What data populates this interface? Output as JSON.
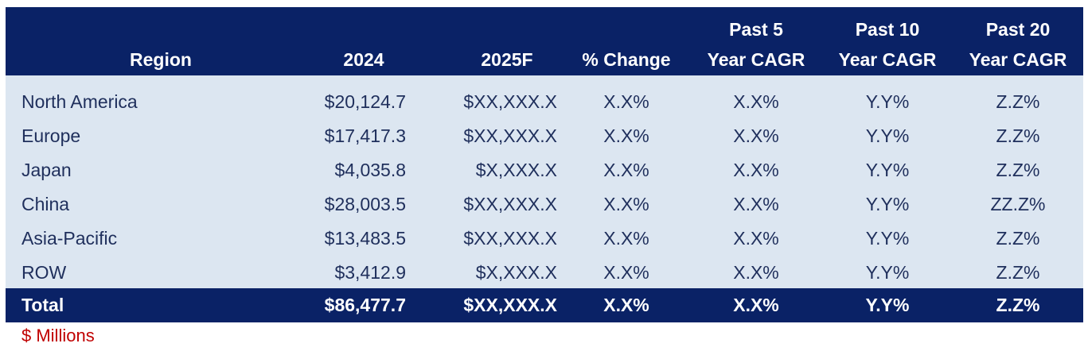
{
  "chart_data": {
    "type": "table",
    "columns": [
      "Region",
      "2024",
      "2025F",
      "% Change",
      "Past 5 Year CAGR",
      "Past 10 Year CAGR",
      "Past 20 Year CAGR"
    ],
    "header": {
      "region": [
        "Region"
      ],
      "y2024": [
        "2024"
      ],
      "y2025f": [
        "2025F"
      ],
      "pct_change": [
        "% Change"
      ],
      "cagr5": [
        "Past 5",
        "Year CAGR"
      ],
      "cagr10": [
        "Past 10",
        "Year CAGR"
      ],
      "cagr20": [
        "Past 20",
        "Year CAGR"
      ]
    },
    "rows": [
      {
        "region": "North America",
        "y2024": "$20,124.7",
        "y2025f": "$XX,XXX.X",
        "pct_change": "X.X%",
        "cagr5": "X.X%",
        "cagr10": "Y.Y%",
        "cagr20": "Z.Z%"
      },
      {
        "region": "Europe",
        "y2024": "$17,417.3",
        "y2025f": "$XX,XXX.X",
        "pct_change": "X.X%",
        "cagr5": "X.X%",
        "cagr10": "Y.Y%",
        "cagr20": "Z.Z%"
      },
      {
        "region": "Japan",
        "y2024": "$4,035.8",
        "y2025f": "$X,XXX.X",
        "pct_change": "X.X%",
        "cagr5": "X.X%",
        "cagr10": "Y.Y%",
        "cagr20": "Z.Z%"
      },
      {
        "region": "China",
        "y2024": "$28,003.5",
        "y2025f": "$XX,XXX.X",
        "pct_change": "X.X%",
        "cagr5": "X.X%",
        "cagr10": "Y.Y%",
        "cagr20": "ZZ.Z%"
      },
      {
        "region": "Asia-Pacific",
        "y2024": "$13,483.5",
        "y2025f": "$XX,XXX.X",
        "pct_change": "X.X%",
        "cagr5": "X.X%",
        "cagr10": "Y.Y%",
        "cagr20": "Z.Z%"
      },
      {
        "region": "ROW",
        "y2024": "$3,412.9",
        "y2025f": "$X,XXX.X",
        "pct_change": "X.X%",
        "cagr5": "X.X%",
        "cagr10": "Y.Y%",
        "cagr20": "Z.Z%"
      }
    ],
    "total": {
      "region": "Total",
      "y2024": "$86,477.7",
      "y2025f": "$XX,XXX.X",
      "pct_change": "X.X%",
      "cagr5": "X.X%",
      "cagr10": "Y.Y%",
      "cagr20": "Z.Z%"
    },
    "footnote": "$ Millions"
  },
  "colors": {
    "header_bg": "#0a2266",
    "body_bg": "#dce6f1",
    "body_text": "#1f2f5c",
    "header_text": "#ffffff",
    "footnote": "#c00000"
  }
}
